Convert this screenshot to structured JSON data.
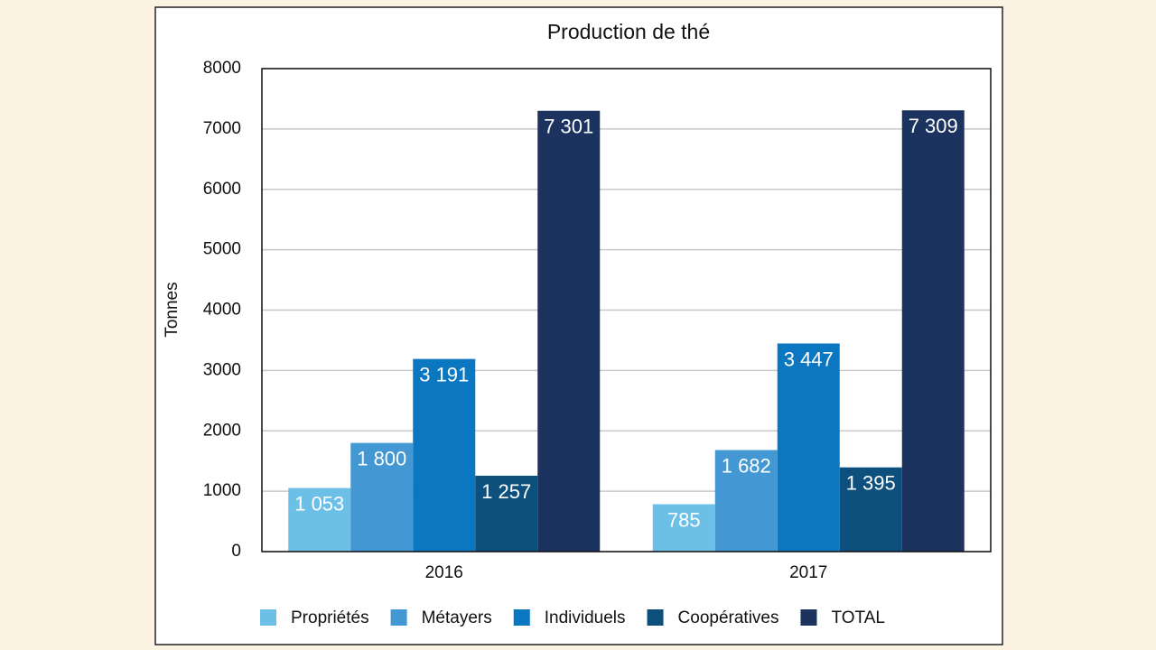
{
  "chart_data": {
    "type": "bar",
    "title": "Production de thé",
    "y_label": "Tonnes",
    "categories": [
      "2016",
      "2017"
    ],
    "series": [
      {
        "name": "Propriétés",
        "color": "#6cc0e8",
        "values": [
          1053,
          785
        ],
        "value_labels": [
          "1 053",
          "785"
        ]
      },
      {
        "name": "Métayers",
        "color": "#4398d4",
        "values": [
          1800,
          1682
        ],
        "value_labels": [
          "1 800",
          "1 682"
        ]
      },
      {
        "name": "Individuels",
        "color": "#0a77c0",
        "values": [
          3191,
          3447
        ],
        "value_labels": [
          "3 191",
          "3 447"
        ]
      },
      {
        "name": "Coopératives",
        "color": "#0d4f7d",
        "values": [
          1257,
          1395
        ],
        "value_labels": [
          "1 257",
          "1 395"
        ]
      },
      {
        "name": "TOTAL",
        "color": "#1b335e",
        "values": [
          7301,
          7309
        ],
        "value_labels": [
          "7 301",
          "7 309"
        ]
      }
    ],
    "ylim": [
      0,
      8000
    ],
    "yticks": [
      0,
      1000,
      2000,
      3000,
      4000,
      5000,
      6000,
      7000,
      8000
    ],
    "grid": true
  }
}
